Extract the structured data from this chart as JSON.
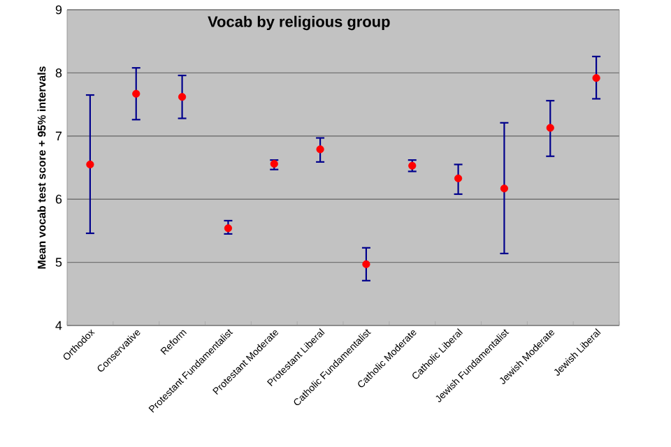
{
  "chart_data": {
    "type": "scatter",
    "title": "Vocab by religious group",
    "ylabel": "Mean vocab test score + 95% intervals",
    "categories": [
      "Orthodox",
      "Conservative",
      "Reform",
      "Protestant Fundamentalist",
      "Protestant Moderate",
      "Protestant Liberal",
      "Catholic Fundamentalist",
      "Catholic Moderate",
      "Catholic Liberal",
      "Jewish Fundamentalist",
      "Jewish Moderate",
      "Jewish Liberal"
    ],
    "series": [
      {
        "color": "#ff0000",
        "values": [
          6.55,
          7.67,
          7.62,
          5.54,
          6.56,
          6.79,
          4.97,
          6.53,
          6.33,
          6.17,
          7.13,
          7.92
        ],
        "errors": [
          [
            5.46,
            7.65
          ],
          [
            7.26,
            8.08
          ],
          [
            7.28,
            7.96
          ],
          [
            5.45,
            5.66
          ],
          [
            6.47,
            6.62
          ],
          [
            6.59,
            6.97
          ],
          [
            4.71,
            5.23
          ],
          [
            6.44,
            6.62
          ],
          [
            6.08,
            6.55
          ],
          [
            5.14,
            7.21
          ],
          [
            6.68,
            7.56
          ],
          [
            7.59,
            8.26
          ]
        ]
      }
    ],
    "ylim": [
      4,
      9
    ],
    "yticks": [
      4,
      5,
      6,
      7,
      8,
      9
    ],
    "grid": "y",
    "marker": "circle"
  }
}
